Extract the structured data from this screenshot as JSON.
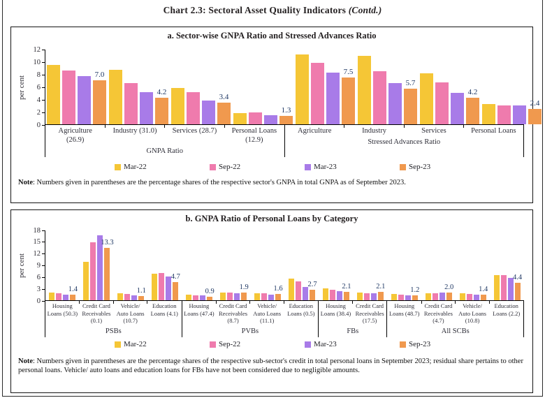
{
  "page_title": {
    "prefix": "Chart 2.3: Sectoral Asset Quality Indicators ",
    "italic_suffix": "(Contd.)"
  },
  "legend": {
    "items": [
      {
        "label": "Mar-22",
        "color": "#F5C636"
      },
      {
        "label": "Sep-22",
        "color": "#EF7BAD"
      },
      {
        "label": "Mar-23",
        "color": "#A87BE8"
      },
      {
        "label": "Sep-23",
        "color": "#F0994E"
      }
    ]
  },
  "panel_a": {
    "title": "a. Sector-wise GNPA Ratio and Stressed Advances Ratio",
    "note_label": "Note",
    "note_text": ": Numbers given in parentheses are the percentage shares of the respective sector's GNPA in total GNPA as of September 2023.",
    "chart_data": {
      "type": "bar",
      "ylabel": "per cent",
      "ylim": [
        0,
        12
      ],
      "ytick_step": 2,
      "series_names": [
        "Mar-22",
        "Sep-22",
        "Mar-23",
        "Sep-23"
      ],
      "groups": [
        {
          "label": "GNPA Ratio",
          "categories": [
            "Agriculture (26.9)",
            "Industry (31.0)",
            "Services (28.7)",
            "Personal Loans (12.9)"
          ],
          "values": [
            [
              9.4,
              8.6,
              7.7,
              7.0
            ],
            [
              8.7,
              6.6,
              5.1,
              4.2
            ],
            [
              5.8,
              5.1,
              3.8,
              3.4
            ],
            [
              1.8,
              1.9,
              1.4,
              1.3
            ]
          ],
          "bar_labels": [
            "7.0",
            "4.2",
            "3.4",
            "1.3"
          ]
        },
        {
          "label": "Stressed Advances Ratio",
          "categories": [
            "Agriculture",
            "Industry",
            "Services",
            "Personal Loans"
          ],
          "values": [
            [
              11.1,
              9.8,
              8.2,
              7.5
            ],
            [
              10.9,
              8.5,
              6.6,
              5.7
            ],
            [
              8.1,
              6.7,
              5.0,
              4.2
            ],
            [
              3.2,
              3.0,
              3.0,
              2.4
            ]
          ],
          "bar_labels": [
            "7.5",
            "5.7",
            "4.2",
            "2.4"
          ]
        }
      ]
    }
  },
  "panel_b": {
    "title": "b. GNPA Ratio of Personal Loans by Category",
    "note_label": "Note",
    "note_text": ": Numbers given in parentheses are the percentage shares of the respective sub-sector's credit in total personal loans in September 2023; residual share pertains to other personal loans. Vehicle/ auto loans and education loans for FBs have not been considered due to negligible amounts.",
    "chart_data": {
      "type": "bar",
      "ylabel": "per cent",
      "ylim": [
        0,
        18
      ],
      "ytick_step": 3,
      "series_names": [
        "Mar-22",
        "Sep-22",
        "Mar-23",
        "Sep-23"
      ],
      "groups": [
        {
          "label": "PSBs",
          "categories": [
            "Housing Loans (50.3)",
            "Credit Card Receivables (0.1)",
            "Vehicle/ Auto Loans (10.7)",
            "Education Loans (4.1)"
          ],
          "values": [
            [
              1.9,
              1.7,
              1.5,
              1.4
            ],
            [
              9.8,
              14.8,
              16.5,
              13.3
            ],
            [
              1.8,
              1.6,
              1.2,
              1.1
            ],
            [
              6.8,
              6.9,
              6.1,
              4.7
            ]
          ],
          "bar_labels": [
            "1.4",
            "13.3",
            "1.1",
            "4.7"
          ]
        },
        {
          "label": "PVBs",
          "categories": [
            "Housing Loans (47.4)",
            "Credit Card Receivables (8.7)",
            "Vehicle/ Auto Loans (11.1)",
            "Education Loans (0.5)"
          ],
          "values": [
            [
              1.4,
              1.3,
              1.2,
              0.9
            ],
            [
              1.9,
              1.9,
              1.8,
              1.9
            ],
            [
              1.8,
              1.8,
              1.5,
              1.6
            ],
            [
              5.6,
              4.9,
              3.4,
              2.7
            ]
          ],
          "bar_labels": [
            "0.9",
            "1.9",
            "1.6",
            "2.7"
          ]
        },
        {
          "label": "FBs",
          "categories": [
            "Housing Loans (38.4)",
            "Credit Card Receivables (17.5)"
          ],
          "values": [
            [
              3.1,
              2.6,
              2.3,
              2.1
            ],
            [
              1.9,
              1.7,
              1.8,
              2.1
            ]
          ],
          "bar_labels": [
            "2.1",
            "2.1"
          ]
        },
        {
          "label": "All SCBs",
          "categories": [
            "Housing Loans (48.7)",
            "Credit Card Receivables (4.7)",
            "Vehicle/ Auto Loans (10.8)",
            "Education Loans (2.2)"
          ],
          "values": [
            [
              1.6,
              1.5,
              1.3,
              1.2
            ],
            [
              1.8,
              1.8,
              1.9,
              2.0
            ],
            [
              1.7,
              1.6,
              1.4,
              1.4
            ],
            [
              6.5,
              6.5,
              5.7,
              4.4
            ]
          ],
          "bar_labels": [
            "1.2",
            "2.0",
            "1.4",
            "4.4"
          ]
        }
      ]
    }
  }
}
